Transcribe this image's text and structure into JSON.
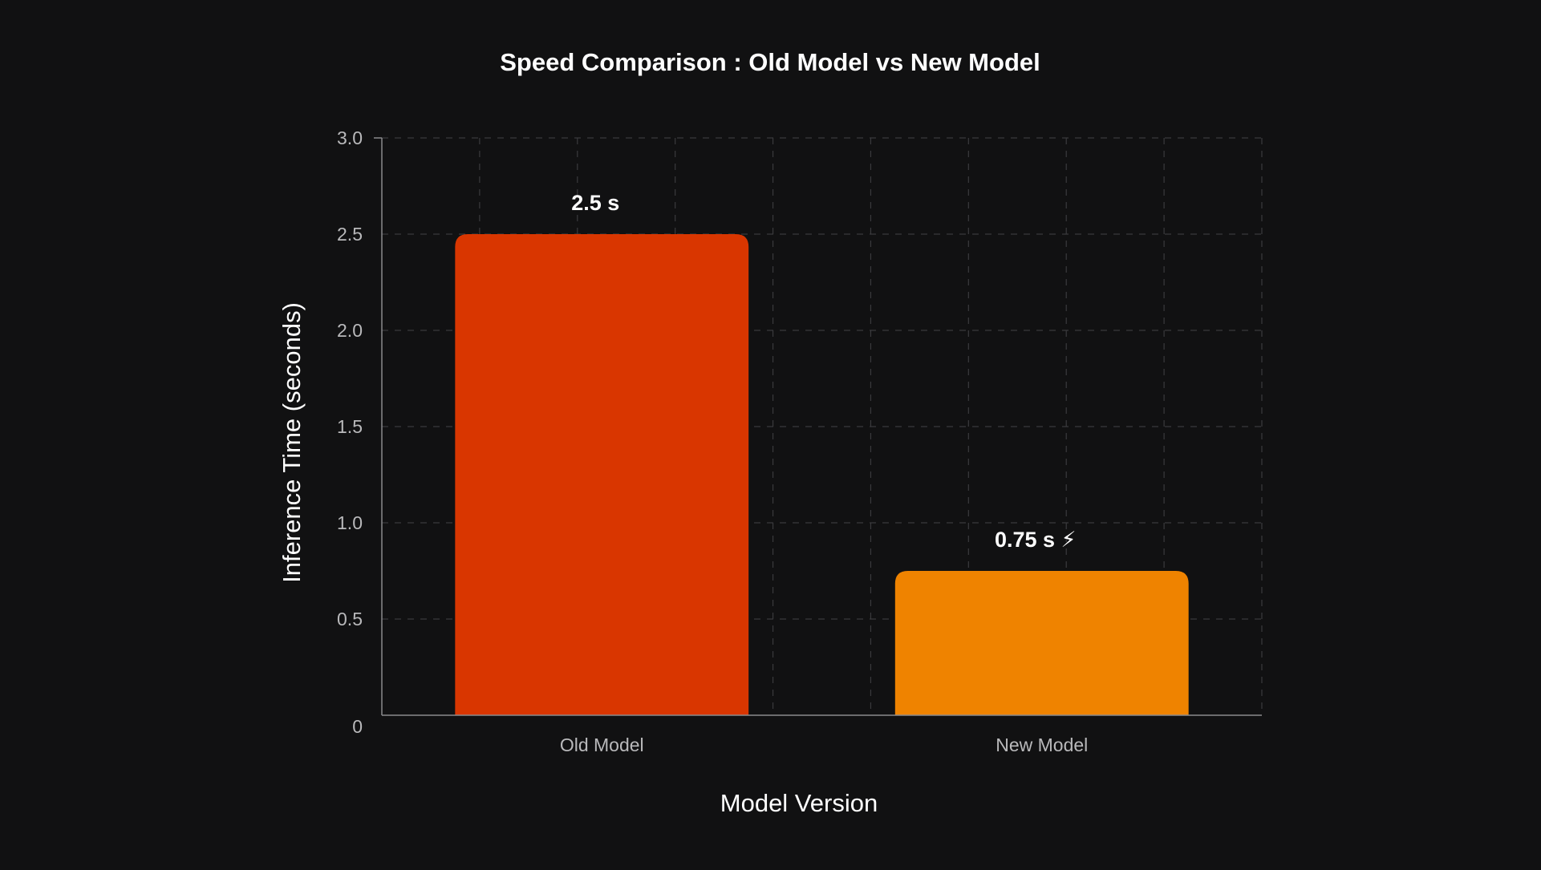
{
  "chart_data": {
    "type": "bar",
    "title": "Speed Comparison : Old Model vs New Model",
    "xlabel": "Model Version",
    "ylabel": "Inference Time (seconds)",
    "categories": [
      "Old Model",
      "New Model"
    ],
    "values": [
      2.5,
      0.75
    ],
    "data_labels": [
      "2.5 s",
      "0.75 s ⚡"
    ],
    "colors": [
      "#d93600",
      "#ef8300"
    ],
    "ylim": [
      0,
      3.0
    ],
    "yticks": [
      0,
      0.5,
      1.0,
      1.5,
      2.0,
      2.5,
      3.0
    ],
    "ytick_labels": [
      "0",
      "0.5",
      "1.0",
      "1.5",
      "2.0",
      "2.5",
      "3.0"
    ],
    "grid": true,
    "background": "#111112"
  }
}
